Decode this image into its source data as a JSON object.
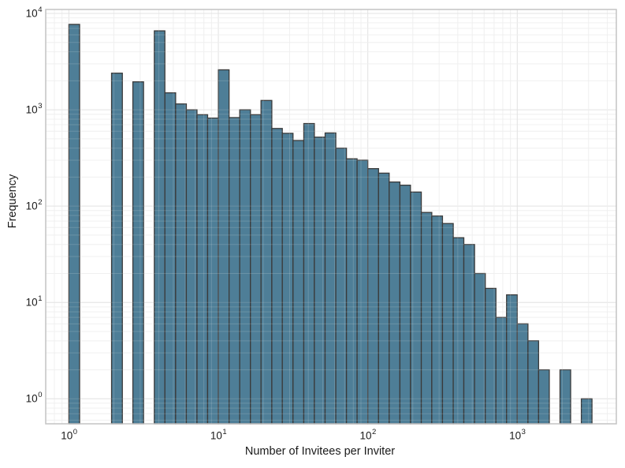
{
  "figure": {
    "background": "#ffffff",
    "text_color": "#1a1a1a"
  },
  "chart_data": {
    "type": "bar",
    "subtype": "log-log histogram",
    "title": "",
    "xlabel": "Number of Invitees per Inviter",
    "ylabel": "Frequency",
    "x_scale": "log",
    "y_scale": "log",
    "xlim": [
      0.7,
      4600
    ],
    "ylim": [
      0.55,
      11000
    ],
    "grid": {
      "major": true,
      "minor": true,
      "major_color": "#e3e3e3",
      "minor_color": "#f1f1f1"
    },
    "legend": "none",
    "panel_border_color": "#c4c4c4",
    "bar_color": "#4e7e97",
    "bar_edge_color": "#3a3a3a",
    "x_ticks": [
      {
        "base": "10",
        "exp": "0",
        "value": 1
      },
      {
        "base": "10",
        "exp": "1",
        "value": 10
      },
      {
        "base": "10",
        "exp": "2",
        "value": 100
      },
      {
        "base": "10",
        "exp": "3",
        "value": 1000
      }
    ],
    "y_ticks": [
      {
        "base": "10",
        "exp": "0",
        "value": 1
      },
      {
        "base": "10",
        "exp": "1",
        "value": 10
      },
      {
        "base": "10",
        "exp": "2",
        "value": 100
      },
      {
        "base": "10",
        "exp": "3",
        "value": 1000
      },
      {
        "base": "10",
        "exp": "4",
        "value": 10000
      }
    ],
    "bin_edges": [
      1.0,
      1.18,
      1.39,
      1.64,
      1.93,
      2.28,
      2.68,
      3.16,
      3.73,
      4.39,
      5.18,
      6.11,
      7.2,
      8.48,
      10.0,
      11.8,
      13.9,
      16.4,
      19.3,
      22.8,
      26.8,
      31.6,
      37.3,
      43.9,
      51.8,
      61.1,
      72.0,
      84.8,
      100,
      118,
      139,
      164,
      193,
      228,
      268,
      316,
      373,
      439,
      518,
      611,
      720,
      848,
      1000,
      1179,
      1389,
      1638,
      1931,
      2276,
      2683,
      3162
    ],
    "counts": [
      7700,
      0,
      0,
      0,
      2400,
      0,
      1950,
      0,
      6600,
      1500,
      1150,
      1000,
      890,
      820,
      2600,
      830,
      1000,
      890,
      1250,
      640,
      570,
      480,
      720,
      520,
      575,
      400,
      310,
      300,
      245,
      220,
      178,
      165,
      140,
      86,
      79,
      66,
      47,
      40,
      20,
      14,
      7,
      12,
      6,
      4,
      2,
      0,
      2,
      0,
      1
    ]
  }
}
